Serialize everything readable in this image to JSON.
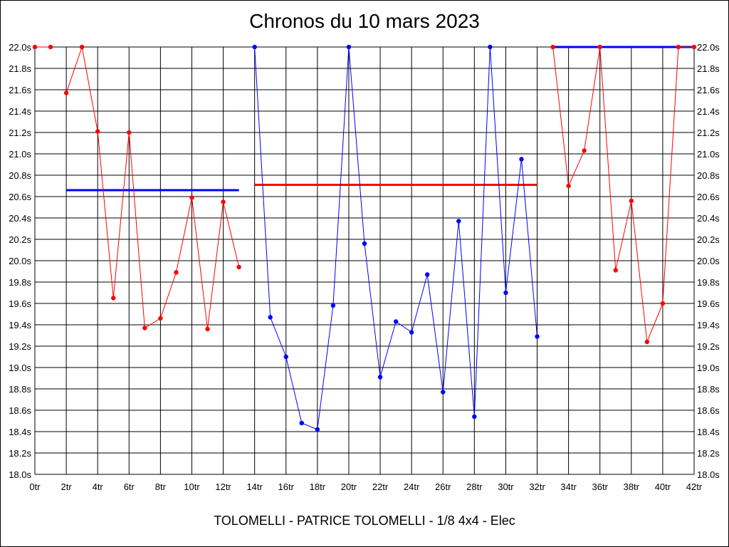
{
  "chart_data": {
    "type": "line",
    "title": "Chronos du 10 mars 2023",
    "footer": "TOLOMELLI - PATRICE TOLOMELLI - 1/8 4x4 - Elec",
    "xlim": [
      0,
      42
    ],
    "ylim": [
      18.0,
      22.0
    ],
    "x_ticks": [
      0,
      2,
      4,
      6,
      8,
      10,
      12,
      14,
      16,
      18,
      20,
      22,
      24,
      26,
      28,
      30,
      32,
      34,
      36,
      38,
      40,
      42
    ],
    "x_tick_labels": [
      "0tr",
      "2tr",
      "4tr",
      "6tr",
      "8tr",
      "10tr",
      "12tr",
      "14tr",
      "16tr",
      "18tr",
      "20tr",
      "22tr",
      "24tr",
      "26tr",
      "28tr",
      "30tr",
      "32tr",
      "34tr",
      "36tr",
      "38tr",
      "40tr",
      "42tr"
    ],
    "y_ticks": [
      18.0,
      18.2,
      18.4,
      18.6,
      18.8,
      19.0,
      19.2,
      19.4,
      19.6,
      19.8,
      20.0,
      20.2,
      20.4,
      20.6,
      20.8,
      21.0,
      21.2,
      21.4,
      21.6,
      21.8,
      22.0
    ],
    "y_tick_labels": [
      "18.0s",
      "18.2s",
      "18.4s",
      "18.6s",
      "18.8s",
      "19.0s",
      "19.2s",
      "19.4s",
      "19.6s",
      "19.8s",
      "20.0s",
      "20.2s",
      "20.4s",
      "20.6s",
      "20.8s",
      "21.0s",
      "21.2s",
      "21.4s",
      "21.6s",
      "21.8s",
      "22.0s"
    ],
    "grid": true,
    "colors": {
      "red": "#ff0000",
      "blue": "#0000ff"
    },
    "series": [
      {
        "color": "#ff0000",
        "points": [
          [
            0,
            22.0
          ],
          [
            1,
            22.0
          ]
        ]
      },
      {
        "color": "#ff0000",
        "points": [
          [
            2,
            21.57
          ],
          [
            3,
            22.0
          ],
          [
            4,
            21.21
          ],
          [
            5,
            19.65
          ],
          [
            6,
            21.2
          ],
          [
            7,
            19.37
          ],
          [
            8,
            19.46
          ],
          [
            9,
            19.89
          ],
          [
            10,
            20.59
          ],
          [
            11,
            19.36
          ],
          [
            12,
            20.55
          ],
          [
            13,
            19.94
          ]
        ]
      },
      {
        "color": "#0000ff",
        "points": [
          [
            14,
            22.0
          ],
          [
            15,
            19.47
          ],
          [
            16,
            19.1
          ],
          [
            17,
            18.48
          ],
          [
            18,
            18.42
          ],
          [
            19,
            19.58
          ],
          [
            20,
            22.0
          ],
          [
            21,
            20.16
          ],
          [
            22,
            18.91
          ],
          [
            23,
            19.43
          ],
          [
            24,
            19.33
          ],
          [
            25,
            19.87
          ],
          [
            26,
            18.77
          ],
          [
            27,
            20.37
          ],
          [
            28,
            18.54
          ],
          [
            29,
            22.0
          ],
          [
            30,
            19.7
          ],
          [
            31,
            20.95
          ],
          [
            32,
            19.29
          ]
        ]
      },
      {
        "color": "#ff0000",
        "points": [
          [
            33,
            22.0
          ],
          [
            34,
            20.7
          ],
          [
            35,
            21.03
          ],
          [
            36,
            22.0
          ],
          [
            37,
            19.91
          ],
          [
            38,
            20.56
          ],
          [
            39,
            19.24
          ],
          [
            40,
            19.6
          ],
          [
            41,
            22.0
          ],
          [
            42,
            22.0
          ]
        ]
      }
    ],
    "averages": [
      {
        "color": "#0000ff",
        "x_start": 2,
        "x_end": 13,
        "y": 20.66
      },
      {
        "color": "#ff0000",
        "x_start": 14,
        "x_end": 32,
        "y": 20.71
      },
      {
        "color": "#0000ff",
        "x_start": 33,
        "x_end": 42,
        "y": 22.0
      }
    ]
  }
}
